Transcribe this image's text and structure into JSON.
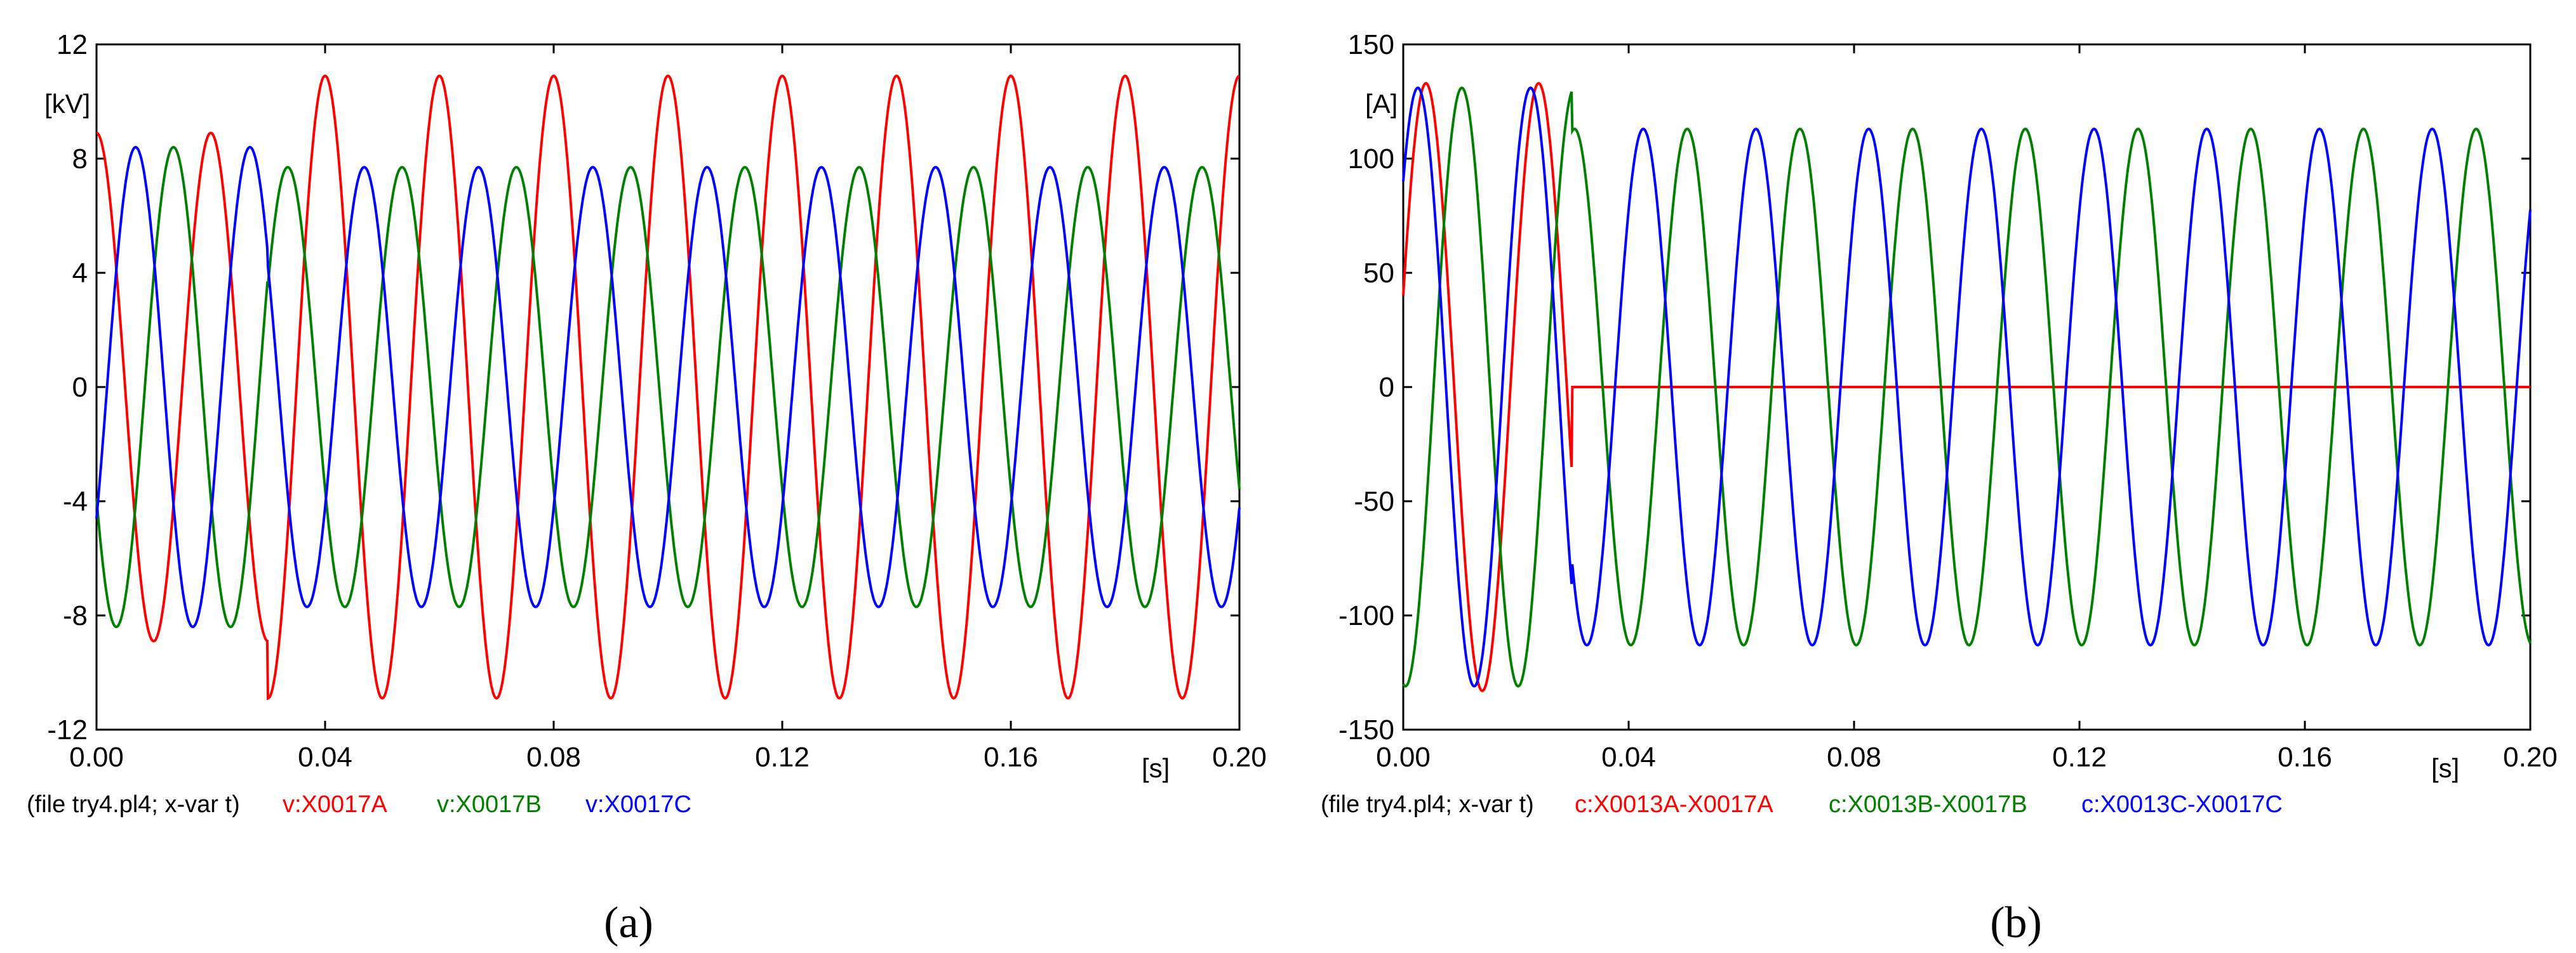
{
  "colors": {
    "phaseA": "#ff0000",
    "phaseB": "#008000",
    "phaseC": "#0000ff",
    "axis": "#000000",
    "text": "#000000"
  },
  "chart_data": [
    {
      "type": "line",
      "panel_caption": "(a)",
      "y_unit": "[kV]",
      "x_unit": "[s]",
      "file_note": "(file try4.pl4; x-var t)",
      "xlim": [
        0.0,
        0.2
      ],
      "ylim": [
        -12,
        12
      ],
      "x_ticks": [
        "0.00",
        "0.04",
        "0.08",
        "0.12",
        "0.16",
        "0.20"
      ],
      "y_ticks": [
        "12",
        "8",
        "4",
        "0",
        "-4",
        "-8",
        "-12"
      ],
      "grid": false,
      "frequency_hz": 50,
      "fault_time_s": 0.03,
      "series": [
        {
          "name": "v:X0017A",
          "color": "#ff0000",
          "amplitude_pre_fault": 8.9,
          "amplitude_post_fault": 10.9,
          "value_at_t0": 8.9
        },
        {
          "name": "v:X0017B",
          "color": "#008000",
          "amplitude_pre_fault": 8.4,
          "amplitude_post_fault": 7.7,
          "value_at_t0": -3.9
        },
        {
          "name": "v:X0017C",
          "color": "#0000ff",
          "amplitude_pre_fault": 8.4,
          "amplitude_post_fault": 7.7,
          "value_at_t0": -4.6
        }
      ]
    },
    {
      "type": "line",
      "panel_caption": "(b)",
      "y_unit": "[A]",
      "x_unit": "[s]",
      "file_note": "(file try4.pl4; x-var t)",
      "xlim": [
        0.0,
        0.2
      ],
      "ylim": [
        -150,
        150
      ],
      "x_ticks": [
        "0.00",
        "0.04",
        "0.08",
        "0.12",
        "0.16",
        "0.20"
      ],
      "y_ticks": [
        "150",
        "100",
        "50",
        "0",
        "-50",
        "-100",
        "-150"
      ],
      "grid": false,
      "frequency_hz": 50,
      "fault_time_s": 0.03,
      "series": [
        {
          "name": "c:X0013A-X0017A",
          "color": "#ff0000",
          "amplitude_pre_fault": 133,
          "amplitude_post_fault": 0,
          "value_at_t0": 40
        },
        {
          "name": "c:X0013B-X0017B",
          "color": "#008000",
          "amplitude_pre_fault": 131,
          "amplitude_post_fault": 113,
          "value_at_t0": -130
        },
        {
          "name": "c:X0013C-X0017C",
          "color": "#0000ff",
          "amplitude_pre_fault": 131,
          "amplitude_post_fault": 113,
          "value_at_t0": 90
        }
      ]
    }
  ]
}
